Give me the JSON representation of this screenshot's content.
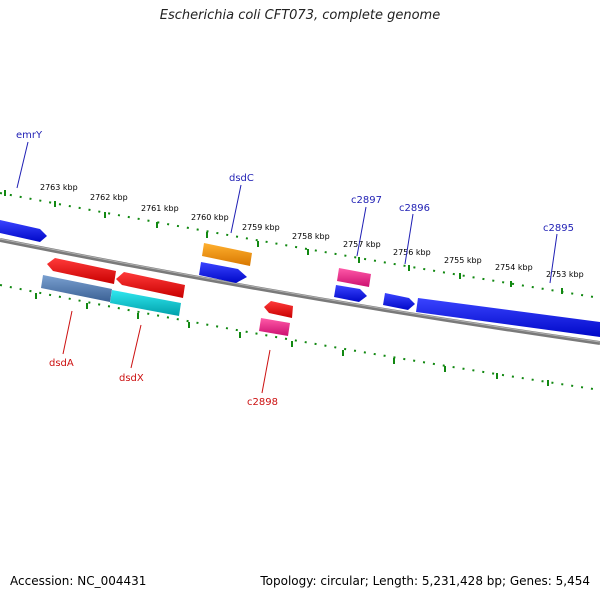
{
  "title": "Escherichia coli CFT073, complete genome",
  "footer": {
    "accession": "Accession: NC_004431",
    "summary": "Topology: circular; Length: 5,231,428 bp; Genes: 5,454"
  },
  "colors": {
    "backbone": "#808080",
    "ticks": "#118811",
    "forward_label": "#1f1fb4",
    "reverse_label": "#cc1111",
    "blue_gene": "#0a12e8",
    "red_gene": "#e80000",
    "orange_gene": "#f08c00",
    "pink_gene": "#ee2a8c",
    "steel_gene": "#4a7ab0",
    "cyan_gene": "#00c0c8"
  },
  "scale_labels": [
    "2763 kbp",
    "2762 kbp",
    "2761 kbp",
    "2760 kbp",
    "2759 kbp",
    "2758 kbp",
    "2757 kbp",
    "2756 kbp",
    "2755 kbp",
    "2754 kbp",
    "2753 kbp"
  ],
  "gene_labels": {
    "forward": [
      "emrY",
      "dsdC",
      "c2897",
      "c2896",
      "c2895"
    ],
    "reverse": [
      "dsdA",
      "dsdX",
      "c2898"
    ]
  }
}
